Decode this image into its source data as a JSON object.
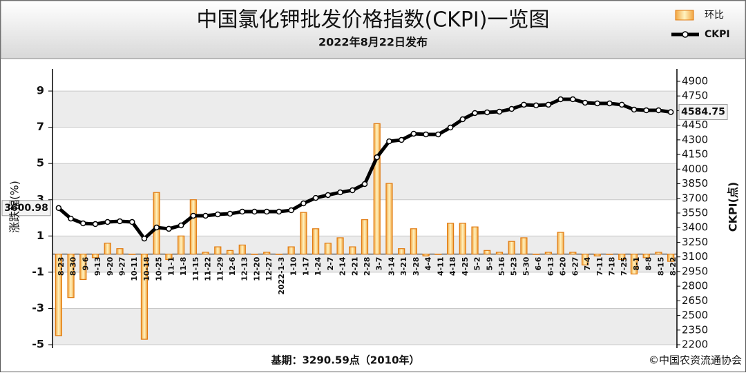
{
  "chart_data": {
    "type": "bar-line",
    "title": "中国氯化钾批发价格指数(CKPI)一览图",
    "subtitle": "2022年8月22日发布",
    "ylabel": "涨跌幅(%)",
    "y2label": "CKPI(点)",
    "base_note": "基期：3290.59点（2010年）",
    "source": "©中国农资流通协会",
    "legend": "top-right",
    "grid": true,
    "categories": [
      "8-23",
      "8-30",
      "9-6",
      "9-13",
      "9-20",
      "9-27",
      "10-11",
      "10-18",
      "10-25",
      "11-1",
      "11-8",
      "11-15",
      "11-22",
      "11-29",
      "12-6",
      "12-13",
      "12-20",
      "12-27",
      "2022-1-3",
      "1-10",
      "1-17",
      "1-24",
      "2-7",
      "2-14",
      "2-21",
      "2-28",
      "3-7",
      "3-14",
      "3-21",
      "3-28",
      "4-4",
      "4-11",
      "4-18",
      "4-25",
      "5-2",
      "5-9",
      "5-16",
      "5-23",
      "5-30",
      "6-6",
      "6-13",
      "6-20",
      "6-27",
      "7-4",
      "7-11",
      "7-18",
      "7-25",
      "8-1",
      "8-8",
      "8-15",
      "8-22"
    ],
    "series": [
      {
        "name": "环比",
        "type": "bar",
        "color": "#e07a10",
        "values": [
          -4.5,
          -2.4,
          -1.4,
          -0.2,
          0.6,
          0.3,
          0,
          -4.7,
          3.4,
          -0.3,
          1.0,
          3.0,
          0.1,
          0.4,
          0.2,
          0.5,
          0,
          0.1,
          0,
          0.4,
          2.3,
          1.4,
          0.6,
          0.9,
          0.4,
          1.9,
          7.2,
          3.9,
          0.3,
          1.4,
          -0.1,
          0,
          1.7,
          1.7,
          1.5,
          0.2,
          0.1,
          0.7,
          0.9,
          0,
          0.1,
          1.2,
          0.1,
          -0.6,
          -0.1,
          0,
          -0.3,
          -1.1,
          -0.2,
          0.1,
          -0.4
        ]
      },
      {
        "name": "CKPI",
        "type": "line",
        "axis": "y2",
        "color": "#000000",
        "values": [
          3600.98,
          3493,
          3444,
          3437,
          3458,
          3465,
          3458,
          3288,
          3402,
          3388,
          3423,
          3522,
          3522,
          3536,
          3543,
          3564,
          3564,
          3564,
          3564,
          3578,
          3649,
          3705,
          3734,
          3762,
          3783,
          3847,
          4122,
          4285,
          4299,
          4363,
          4356,
          4356,
          4426,
          4511,
          4575,
          4582,
          4589,
          4617,
          4660,
          4653,
          4660,
          4716,
          4716,
          4681,
          4674,
          4674,
          4660,
          4610,
          4603,
          4603,
          4584.75
        ]
      }
    ],
    "ylim": [
      -5.19,
      10.22
    ],
    "yticks": [
      -5,
      -3,
      -1,
      1,
      3,
      5,
      7,
      9
    ],
    "y2lim": [
      2165,
      5027
    ],
    "y2ticks": [
      2200,
      2350,
      2500,
      2650,
      2800,
      2950,
      3100,
      3250,
      3400,
      3550,
      3700,
      3850,
      4000,
      4150,
      4300,
      4450,
      4600,
      4750,
      4900
    ]
  }
}
